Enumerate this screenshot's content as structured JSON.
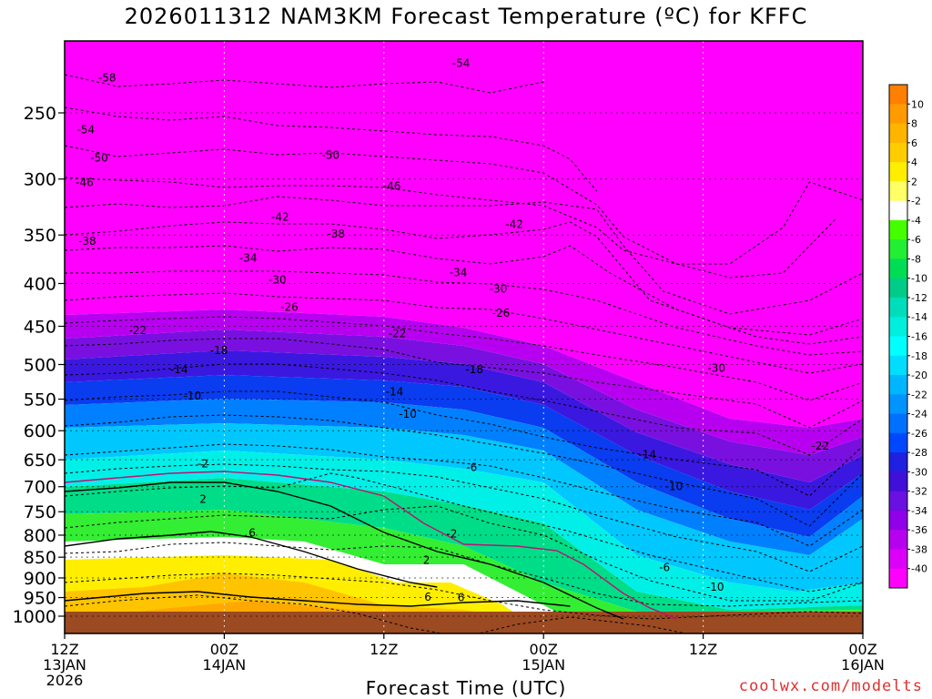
{
  "title": "2026011312 NAM3KM Forecast Temperature (ºC) for KFFC",
  "credit": "coolwx.com/modelts",
  "chart_data": {
    "type": "time-height contour",
    "title": "2026011312 NAM3KM Forecast Temperature (ºC) for KFFC",
    "xlabel": "Forecast Time (UTC)",
    "ylabel": "",
    "ylim": [
      1000,
      200
    ],
    "y_scale": "log-pressure",
    "grid": true,
    "x_ticks": [
      {
        "hour": 0,
        "lines": [
          "12Z",
          "13JAN",
          "2026"
        ]
      },
      {
        "hour": 12,
        "lines": [
          "00Z",
          "14JAN"
        ]
      },
      {
        "hour": 24,
        "lines": [
          "12Z"
        ]
      },
      {
        "hour": 36,
        "lines": [
          "00Z",
          "15JAN"
        ]
      },
      {
        "hour": 48,
        "lines": [
          "12Z"
        ]
      },
      {
        "hour": 60,
        "lines": [
          "00Z",
          "16JAN"
        ]
      }
    ],
    "y_ticks": [
      250,
      300,
      350,
      400,
      450,
      500,
      550,
      600,
      650,
      700,
      750,
      800,
      850,
      900,
      950,
      1000
    ],
    "colorbar": {
      "labels": [
        "10",
        "8",
        "6",
        "4",
        "2",
        "-2",
        "-4",
        "-6",
        "-8",
        "-10",
        "-12",
        "-14",
        "-16",
        "-18",
        "-20",
        "-22",
        "-24",
        "-26",
        "-28",
        "-30",
        "-32",
        "-34",
        "-36",
        "-38",
        "-40"
      ],
      "colors": [
        "#ff7f00",
        "#ff9a00",
        "#ffb400",
        "#ffcc00",
        "#ffee00",
        "#ffff66",
        "#ffffff",
        "#44ff00",
        "#22ee33",
        "#00dd55",
        "#00cc88",
        "#00ddbb",
        "#00eedd",
        "#00ffff",
        "#00ddff",
        "#00b7ff",
        "#0094ff",
        "#0070ff",
        "#0048ff",
        "#2020e0",
        "#4010d8",
        "#6a10e0",
        "#9000e8",
        "#b800f0",
        "#dd00f8",
        "#ff00ff"
      ]
    },
    "contour_labels": [
      {
        "value": "-58",
        "hour": 3.2,
        "p": 227
      },
      {
        "value": "-54",
        "hour": 29.8,
        "p": 218
      },
      {
        "value": "-54",
        "hour": 1.6,
        "p": 262
      },
      {
        "value": "-50",
        "hour": 2.6,
        "p": 283
      },
      {
        "value": "-50",
        "hour": 20.0,
        "p": 281
      },
      {
        "value": "-46",
        "hour": 1.5,
        "p": 303
      },
      {
        "value": "-46",
        "hour": 24.6,
        "p": 306
      },
      {
        "value": "-42",
        "hour": 16.2,
        "p": 333
      },
      {
        "value": "-42",
        "hour": 33.8,
        "p": 340
      },
      {
        "value": "-38",
        "hour": 1.7,
        "p": 356
      },
      {
        "value": "-38",
        "hour": 20.4,
        "p": 349
      },
      {
        "value": "-34",
        "hour": 13.8,
        "p": 373
      },
      {
        "value": "-34",
        "hour": 29.6,
        "p": 388
      },
      {
        "value": "-30",
        "hour": 16.0,
        "p": 396
      },
      {
        "value": "-30",
        "hour": 32.6,
        "p": 406
      },
      {
        "value": "-30",
        "hour": 49.0,
        "p": 505
      },
      {
        "value": "-26",
        "hour": 16.9,
        "p": 427
      },
      {
        "value": "-26",
        "hour": 32.8,
        "p": 434
      },
      {
        "value": "-22",
        "hour": 5.5,
        "p": 455
      },
      {
        "value": "-22",
        "hour": 25.0,
        "p": 459
      },
      {
        "value": "-22",
        "hour": 56.8,
        "p": 626
      },
      {
        "value": "-18",
        "hour": 11.6,
        "p": 481
      },
      {
        "value": "-18",
        "hour": 30.8,
        "p": 507
      },
      {
        "value": "-14",
        "hour": 8.6,
        "p": 507
      },
      {
        "value": "-14",
        "hour": 24.8,
        "p": 539
      },
      {
        "value": "-14",
        "hour": 43.8,
        "p": 641
      },
      {
        "value": "-10",
        "hour": 9.6,
        "p": 545
      },
      {
        "value": "-10",
        "hour": 25.8,
        "p": 573
      },
      {
        "value": "-10",
        "hour": 45.8,
        "p": 700
      },
      {
        "value": "-10",
        "hour": 48.9,
        "p": 923
      },
      {
        "value": "-6",
        "hour": 30.6,
        "p": 664
      },
      {
        "value": "-6",
        "hour": 45.1,
        "p": 874
      },
      {
        "value": "-2",
        "hour": 10.4,
        "p": 657
      },
      {
        "value": "-2",
        "hour": 29.1,
        "p": 797
      },
      {
        "value": "2",
        "hour": 10.4,
        "p": 725
      },
      {
        "value": "2",
        "hour": 27.2,
        "p": 857
      },
      {
        "value": "6",
        "hour": 14.1,
        "p": 795
      },
      {
        "value": "6",
        "hour": 27.3,
        "p": 949
      },
      {
        "value": "6",
        "hour": 29.8,
        "p": 950
      }
    ]
  }
}
